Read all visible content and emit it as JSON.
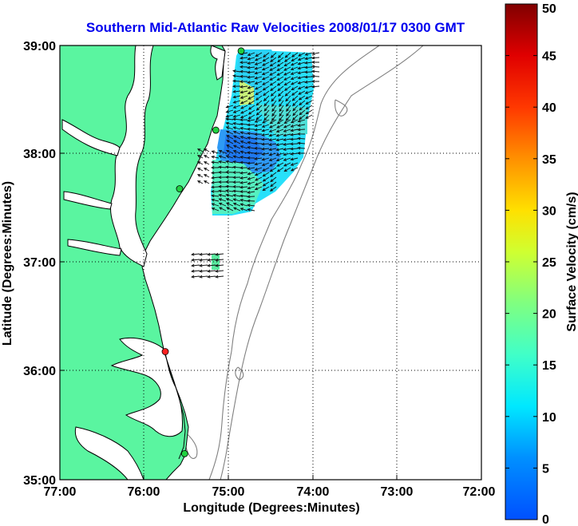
{
  "title": "Southern Mid-Atlantic Raw Velocities 2008/01/17 0300 GMT",
  "chart_data": {
    "type": "map",
    "xlabel": "Longitude (Degrees:Minutes)",
    "ylabel": "Latitude (Degrees:Minutes)",
    "x_ticks": [
      "77:00",
      "76:00",
      "75:00",
      "74:00",
      "73:00",
      "72:00"
    ],
    "y_ticks": [
      "39:00",
      "38:00",
      "37:00",
      "36:00",
      "35:00"
    ],
    "xlim": [
      -77,
      -72
    ],
    "ylim": [
      35,
      39
    ],
    "grid": "dotted",
    "colorbar": {
      "label": "Surface Velocity (cm/s)",
      "min": 0,
      "max": 50,
      "ticks": [
        "0",
        "5",
        "10",
        "15",
        "20",
        "25",
        "30",
        "35",
        "40",
        "45",
        "50"
      ]
    },
    "colors": {
      "land": "#5af5a0",
      "water": "#ffffff",
      "coast": "#000000",
      "bathymetry": "#808080"
    },
    "stations": [
      {
        "lon": -74.85,
        "lat": 38.95,
        "status": "green"
      },
      {
        "lon": -75.15,
        "lat": 38.22,
        "status": "green"
      },
      {
        "lon": -75.58,
        "lat": 37.68,
        "status": "green"
      },
      {
        "lon": -75.75,
        "lat": 36.18,
        "status": "red"
      },
      {
        "lon": -75.52,
        "lat": 35.24,
        "status": "green"
      }
    ]
  }
}
